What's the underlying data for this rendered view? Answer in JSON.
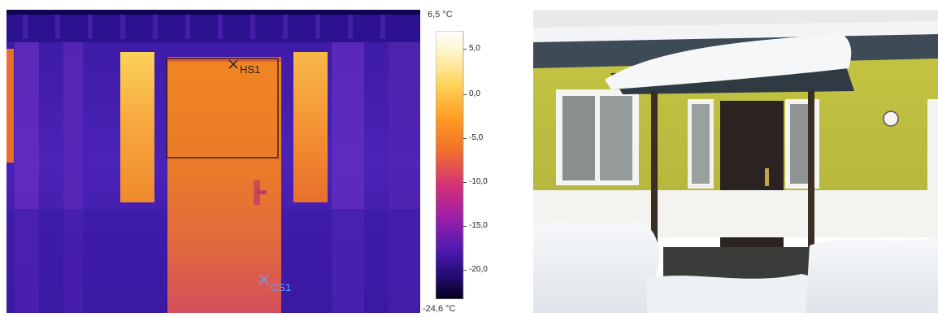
{
  "thermal_image": {
    "scale_max_label": "6,5 °C",
    "scale_min_label": "-24,6 °C",
    "scale_ticks": [
      "5,0",
      "0,0",
      "-5,0",
      "-10,0",
      "-15,0",
      "-20,0"
    ],
    "markers": {
      "hotspot": "HS1",
      "coldspot": "CS1"
    },
    "colors": {
      "hot": "#fff6d5",
      "warm": "#ff8c1a",
      "mid": "#d12f7a",
      "cool": "#5b22b5",
      "cold": "#070028"
    }
  },
  "photo": {
    "sky_color": "#e7e9ea",
    "wall_color": "#c9c94e",
    "snow_color": "#f2f5f7",
    "door_color": "#2a2322"
  }
}
